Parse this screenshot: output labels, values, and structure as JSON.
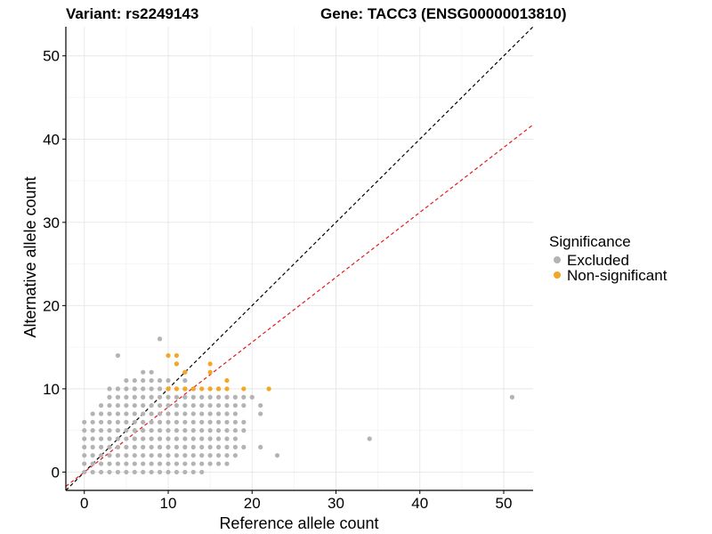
{
  "chart_data": {
    "type": "scatter",
    "title_left": "Variant: rs2249143",
    "title_right": "Gene: TACC3 (ENSG00000013810)",
    "xlabel": "Reference allele count",
    "ylabel": "Alternative allele count",
    "xlim": [
      -2.2,
      53.5
    ],
    "ylim": [
      -2.2,
      53.5
    ],
    "xticks": [
      0,
      10,
      20,
      30,
      40,
      50
    ],
    "yticks": [
      0,
      10,
      20,
      30,
      40,
      50
    ],
    "grid": true,
    "legend": {
      "title": "Significance",
      "placement": "right",
      "entries": [
        {
          "label": "Excluded",
          "color": "#b3b3b3"
        },
        {
          "label": "Non-significant",
          "color": "#f5a623"
        }
      ]
    },
    "reference_lines": [
      {
        "name": "y = x",
        "slope": 1.0,
        "intercept": 0,
        "color": "#000000",
        "dash": "dashed"
      },
      {
        "name": "fitted",
        "slope": 0.78,
        "intercept": 0,
        "color": "#e41a1c",
        "dash": "dashed"
      }
    ],
    "series": [
      {
        "name": "Excluded",
        "color": "#b3b3b3",
        "points": [
          [
            0,
            0
          ],
          [
            0,
            1
          ],
          [
            0,
            2
          ],
          [
            0,
            3
          ],
          [
            0,
            4
          ],
          [
            0,
            5
          ],
          [
            0,
            6
          ],
          [
            1,
            0
          ],
          [
            1,
            1
          ],
          [
            1,
            2
          ],
          [
            1,
            3
          ],
          [
            1,
            4
          ],
          [
            1,
            5
          ],
          [
            1,
            6
          ],
          [
            1,
            7
          ],
          [
            2,
            0
          ],
          [
            2,
            1
          ],
          [
            2,
            2
          ],
          [
            2,
            3
          ],
          [
            2,
            4
          ],
          [
            2,
            5
          ],
          [
            2,
            6
          ],
          [
            2,
            7
          ],
          [
            2,
            8
          ],
          [
            3,
            0
          ],
          [
            3,
            1
          ],
          [
            3,
            2
          ],
          [
            3,
            3
          ],
          [
            3,
            4
          ],
          [
            3,
            5
          ],
          [
            3,
            6
          ],
          [
            3,
            7
          ],
          [
            3,
            8
          ],
          [
            3,
            9
          ],
          [
            3,
            10
          ],
          [
            4,
            0
          ],
          [
            4,
            1
          ],
          [
            4,
            2
          ],
          [
            4,
            3
          ],
          [
            4,
            4
          ],
          [
            4,
            5
          ],
          [
            4,
            6
          ],
          [
            4,
            7
          ],
          [
            4,
            8
          ],
          [
            4,
            9
          ],
          [
            4,
            10
          ],
          [
            4,
            14
          ],
          [
            5,
            0
          ],
          [
            5,
            1
          ],
          [
            5,
            2
          ],
          [
            5,
            3
          ],
          [
            5,
            4
          ],
          [
            5,
            5
          ],
          [
            5,
            6
          ],
          [
            5,
            7
          ],
          [
            5,
            8
          ],
          [
            5,
            9
          ],
          [
            5,
            10
          ],
          [
            5,
            11
          ],
          [
            6,
            0
          ],
          [
            6,
            1
          ],
          [
            6,
            2
          ],
          [
            6,
            3
          ],
          [
            6,
            4
          ],
          [
            6,
            5
          ],
          [
            6,
            6
          ],
          [
            6,
            7
          ],
          [
            6,
            8
          ],
          [
            6,
            9
          ],
          [
            6,
            10
          ],
          [
            6,
            11
          ],
          [
            7,
            0
          ],
          [
            7,
            1
          ],
          [
            7,
            2
          ],
          [
            7,
            3
          ],
          [
            7,
            4
          ],
          [
            7,
            5
          ],
          [
            7,
            6
          ],
          [
            7,
            7
          ],
          [
            7,
            8
          ],
          [
            7,
            9
          ],
          [
            7,
            10
          ],
          [
            7,
            11
          ],
          [
            7,
            12
          ],
          [
            8,
            0
          ],
          [
            8,
            1
          ],
          [
            8,
            2
          ],
          [
            8,
            3
          ],
          [
            8,
            4
          ],
          [
            8,
            5
          ],
          [
            8,
            6
          ],
          [
            8,
            7
          ],
          [
            8,
            8
          ],
          [
            8,
            9
          ],
          [
            8,
            10
          ],
          [
            8,
            11
          ],
          [
            8,
            12
          ],
          [
            9,
            0
          ],
          [
            9,
            1
          ],
          [
            9,
            2
          ],
          [
            9,
            3
          ],
          [
            9,
            4
          ],
          [
            9,
            5
          ],
          [
            9,
            6
          ],
          [
            9,
            7
          ],
          [
            9,
            8
          ],
          [
            9,
            9
          ],
          [
            9,
            10
          ],
          [
            9,
            11
          ],
          [
            9,
            16
          ],
          [
            10,
            0
          ],
          [
            10,
            1
          ],
          [
            10,
            2
          ],
          [
            10,
            3
          ],
          [
            10,
            4
          ],
          [
            10,
            5
          ],
          [
            10,
            6
          ],
          [
            10,
            7
          ],
          [
            10,
            8
          ],
          [
            10,
            9
          ],
          [
            10,
            10
          ],
          [
            10,
            11
          ],
          [
            11,
            0
          ],
          [
            11,
            1
          ],
          [
            11,
            2
          ],
          [
            11,
            3
          ],
          [
            11,
            4
          ],
          [
            11,
            5
          ],
          [
            11,
            6
          ],
          [
            11,
            7
          ],
          [
            11,
            8
          ],
          [
            11,
            9
          ],
          [
            11,
            13
          ],
          [
            12,
            0
          ],
          [
            12,
            1
          ],
          [
            12,
            2
          ],
          [
            12,
            3
          ],
          [
            12,
            4
          ],
          [
            12,
            5
          ],
          [
            12,
            6
          ],
          [
            12,
            7
          ],
          [
            12,
            8
          ],
          [
            12,
            9
          ],
          [
            12,
            10
          ],
          [
            12,
            11
          ],
          [
            12,
            12
          ],
          [
            13,
            0
          ],
          [
            13,
            1
          ],
          [
            13,
            2
          ],
          [
            13,
            3
          ],
          [
            13,
            4
          ],
          [
            13,
            5
          ],
          [
            13,
            6
          ],
          [
            13,
            7
          ],
          [
            13,
            8
          ],
          [
            13,
            9
          ],
          [
            13,
            10
          ],
          [
            14,
            0
          ],
          [
            14,
            1
          ],
          [
            14,
            2
          ],
          [
            14,
            3
          ],
          [
            14,
            4
          ],
          [
            14,
            5
          ],
          [
            14,
            6
          ],
          [
            14,
            7
          ],
          [
            14,
            8
          ],
          [
            14,
            9
          ],
          [
            15,
            1
          ],
          [
            15,
            2
          ],
          [
            15,
            3
          ],
          [
            15,
            4
          ],
          [
            15,
            5
          ],
          [
            15,
            6
          ],
          [
            15,
            7
          ],
          [
            15,
            8
          ],
          [
            15,
            9
          ],
          [
            16,
            1
          ],
          [
            16,
            2
          ],
          [
            16,
            3
          ],
          [
            16,
            4
          ],
          [
            16,
            5
          ],
          [
            16,
            6
          ],
          [
            16,
            7
          ],
          [
            16,
            8
          ],
          [
            16,
            9
          ],
          [
            16,
            10
          ],
          [
            17,
            1
          ],
          [
            17,
            2
          ],
          [
            17,
            3
          ],
          [
            17,
            4
          ],
          [
            17,
            5
          ],
          [
            17,
            6
          ],
          [
            17,
            7
          ],
          [
            17,
            8
          ],
          [
            17,
            9
          ],
          [
            18,
            2
          ],
          [
            18,
            3
          ],
          [
            18,
            4
          ],
          [
            18,
            5
          ],
          [
            18,
            6
          ],
          [
            18,
            7
          ],
          [
            18,
            8
          ],
          [
            18,
            9
          ],
          [
            19,
            3
          ],
          [
            19,
            5
          ],
          [
            19,
            6
          ],
          [
            19,
            8
          ],
          [
            19,
            9
          ],
          [
            20,
            9
          ],
          [
            21,
            3
          ],
          [
            21,
            7
          ],
          [
            21,
            8
          ],
          [
            23,
            2
          ],
          [
            34,
            4
          ],
          [
            51,
            9
          ]
        ]
      },
      {
        "name": "Non-significant",
        "color": "#f5a623",
        "points": [
          [
            10,
            14
          ],
          [
            10,
            10
          ],
          [
            11,
            14
          ],
          [
            11,
            13
          ],
          [
            11,
            10
          ],
          [
            12,
            12
          ],
          [
            12,
            10
          ],
          [
            13,
            10
          ],
          [
            14,
            10
          ],
          [
            15,
            13
          ],
          [
            15,
            12
          ],
          [
            15,
            10
          ],
          [
            16,
            10
          ],
          [
            17,
            11
          ],
          [
            17,
            10
          ],
          [
            19,
            10
          ],
          [
            22,
            10
          ]
        ]
      }
    ]
  }
}
